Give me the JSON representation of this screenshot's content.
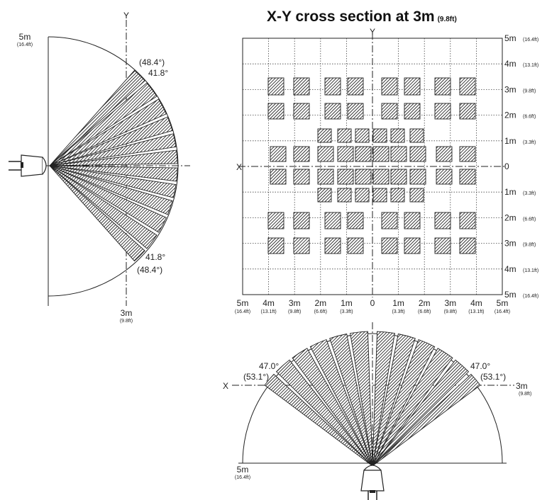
{
  "title": {
    "main": "X-Y cross section at 3m",
    "sub": "(9.8ft)"
  },
  "side_view": {
    "axis_label": "Y",
    "radius_label": {
      "m": "5m",
      "ft": "(16.4ft)"
    },
    "distance_label": {
      "m": "3m",
      "ft": "(9.8ft)"
    },
    "upper_outer_angle": "(48.4°)",
    "upper_inner_angle": "41.8°",
    "lower_inner_angle": "41.8°",
    "lower_outer_angle": "(48.4°)"
  },
  "cross_section": {
    "x_axis_label": "X",
    "y_axis_label": "Y",
    "x_ticks": [
      {
        "m": "5m",
        "ft": "(16.4ft)"
      },
      {
        "m": "4m",
        "ft": "(13.1ft)"
      },
      {
        "m": "3m",
        "ft": "(9.8ft)"
      },
      {
        "m": "2m",
        "ft": "(6.6ft)"
      },
      {
        "m": "1m",
        "ft": "(3.3ft)"
      },
      {
        "m": "0",
        "ft": ""
      },
      {
        "m": "1m",
        "ft": "(3.3ft)"
      },
      {
        "m": "2m",
        "ft": "(6.6ft)"
      },
      {
        "m": "3m",
        "ft": "(9.8ft)"
      },
      {
        "m": "4m",
        "ft": "(13.1ft)"
      },
      {
        "m": "5m",
        "ft": "(16.4ft)"
      }
    ],
    "y_ticks": [
      {
        "m": "5m",
        "ft": "(16.4ft)"
      },
      {
        "m": "4m",
        "ft": "(13.1ft)"
      },
      {
        "m": "3m",
        "ft": "(9.8ft)"
      },
      {
        "m": "2m",
        "ft": "(6.6ft)"
      },
      {
        "m": "1m",
        "ft": "(3.3ft)"
      },
      {
        "m": "0",
        "ft": ""
      },
      {
        "m": "1m",
        "ft": "(3.3ft)"
      },
      {
        "m": "2m",
        "ft": "(6.6ft)"
      },
      {
        "m": "3m",
        "ft": "(9.8ft)"
      },
      {
        "m": "4m",
        "ft": "(13.1ft)"
      },
      {
        "m": "5m",
        "ft": "(16.4ft)"
      }
    ]
  },
  "top_view": {
    "axis_label": "X",
    "left_inner_angle": "47.0°",
    "left_outer_angle": "(53.1°)",
    "right_inner_angle": "47.0°",
    "right_outer_angle": "(53.1°)",
    "distance_label": {
      "m": "3m",
      "ft": "(9.8ft)"
    },
    "radius_label": {
      "m": "5m",
      "ft": "(16.4ft)"
    }
  }
}
